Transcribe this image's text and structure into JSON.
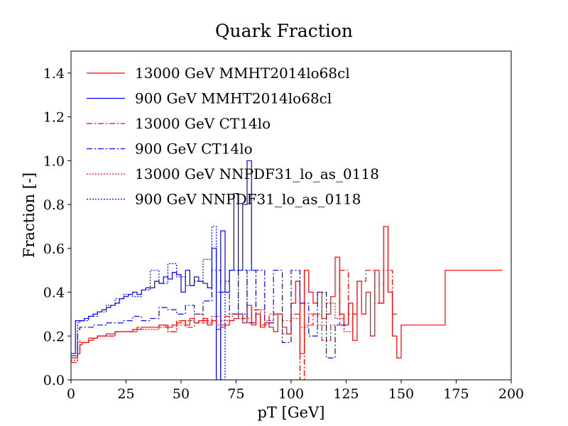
{
  "chart_data": {
    "type": "line",
    "title": "Quark Fraction",
    "xlabel": "pT [GeV]",
    "ylabel": "Fraction [-]",
    "xlim": [
      0,
      200
    ],
    "ylim": [
      0,
      1.5
    ],
    "xticks": [
      0,
      25,
      50,
      75,
      100,
      125,
      150,
      175,
      200
    ],
    "yticks": [
      0.0,
      0.2,
      0.4,
      0.6,
      0.8,
      1.0,
      1.2,
      1.4
    ],
    "xtick_labels": [
      "0",
      "25",
      "50",
      "75",
      "100",
      "125",
      "150",
      "175",
      "200"
    ],
    "ytick_labels": [
      "0.0",
      "0.2",
      "0.4",
      "0.6",
      "0.8",
      "1.0",
      "1.2",
      "1.4"
    ],
    "grid": false,
    "legend_position": "upper-left",
    "step": true,
    "series": [
      {
        "name": "13000 GeV MMHT2014lo68cl",
        "color": "#ff0000",
        "dash": "solid",
        "x": [
          0,
          1,
          2,
          3,
          4,
          5,
          8,
          10,
          12,
          14,
          16,
          18,
          20,
          24,
          28,
          32,
          36,
          40,
          43,
          46,
          48,
          50,
          52,
          54,
          56,
          58,
          60,
          62,
          64,
          66,
          68,
          70,
          72,
          74,
          76,
          78,
          80,
          82,
          84,
          86,
          88,
          90,
          92,
          94,
          96,
          98,
          100,
          102,
          104,
          106,
          108,
          110,
          112,
          114,
          116,
          118,
          120,
          122,
          124,
          126,
          128,
          130,
          132,
          134,
          136,
          138,
          140,
          142,
          144,
          146,
          148,
          150,
          170,
          172,
          186,
          188,
          190,
          192,
          194
        ],
        "y": [
          0.1,
          0.1,
          0.1,
          0.12,
          0.16,
          0.17,
          0.18,
          0.19,
          0.2,
          0.2,
          0.21,
          0.21,
          0.22,
          0.22,
          0.23,
          0.24,
          0.24,
          0.25,
          0.24,
          0.25,
          0.26,
          0.27,
          0.25,
          0.28,
          0.26,
          0.27,
          0.28,
          0.25,
          0.27,
          0.23,
          0.24,
          0.25,
          0.27,
          0.28,
          0.3,
          0.26,
          0.34,
          0.25,
          0.3,
          0.24,
          0.26,
          0.24,
          0.22,
          0.3,
          0.24,
          0.21,
          0.35,
          0.45,
          0.12,
          0.5,
          0.4,
          0.35,
          0.4,
          0.28,
          0.3,
          0.38,
          0.56,
          0.3,
          0.25,
          0.35,
          0.18,
          0.45,
          0.3,
          0.4,
          0.2,
          0.5,
          0.35,
          0.7,
          0.4,
          0.2,
          0.1,
          0.25,
          0.5,
          0.5,
          0.5,
          0.5,
          0.5,
          0.5,
          0.5
        ]
      },
      {
        "name": "900 GeV MMHT2014lo68cl",
        "color": "#0000ff",
        "dash": "solid",
        "x": [
          0,
          1,
          2,
          3,
          4,
          5,
          6,
          8,
          10,
          12,
          14,
          16,
          18,
          20,
          22,
          24,
          26,
          28,
          30,
          32,
          34,
          36,
          38,
          40,
          42,
          44,
          46,
          48,
          50,
          52,
          54,
          56,
          58,
          60,
          62,
          64,
          66,
          68,
          70,
          72,
          74,
          76,
          78,
          80,
          82
        ],
        "y": [
          0.12,
          0.12,
          0.27,
          0.27,
          0.27,
          0.27,
          0.28,
          0.29,
          0.3,
          0.31,
          0.32,
          0.33,
          0.34,
          0.35,
          0.37,
          0.38,
          0.39,
          0.4,
          0.39,
          0.41,
          0.42,
          0.42,
          0.45,
          0.44,
          0.47,
          0.46,
          0.49,
          0.48,
          0.4,
          0.5,
          0.43,
          0.47,
          0.45,
          0.44,
          0.42,
          0.6,
          0.0,
          0.68,
          0.4,
          0.5,
          0.85,
          0.5,
          0.8,
          1.0,
          0.5
        ]
      },
      {
        "name": "13000 GeV CT14lo",
        "color": "#ff0000",
        "dash": "dashdot",
        "x": [
          0,
          1,
          3,
          4,
          8,
          12,
          20,
          30,
          40,
          44,
          48,
          52,
          56,
          60,
          66,
          70,
          74,
          78,
          82,
          86,
          90,
          96,
          100,
          104,
          106,
          110,
          114,
          118,
          122,
          126,
          130,
          134,
          138,
          142,
          146
        ],
        "y": [
          0.08,
          0.08,
          0.18,
          0.17,
          0.19,
          0.2,
          0.22,
          0.24,
          0.25,
          0.22,
          0.27,
          0.24,
          0.26,
          0.27,
          0.25,
          0.29,
          0.3,
          0.28,
          0.32,
          0.25,
          0.3,
          0.27,
          0.3,
          0.0,
          0.25,
          0.3,
          0.18,
          0.25,
          0.5,
          0.3,
          0.45,
          0.5,
          0.35,
          0.5,
          0.3
        ]
      },
      {
        "name": "900 GeV CT14lo",
        "color": "#0000ff",
        "dash": "dashdot",
        "x": [
          0,
          1,
          3,
          4,
          10,
          16,
          24,
          28,
          32,
          36,
          40,
          44,
          48,
          52,
          56,
          60,
          64,
          68,
          72,
          76,
          80,
          84,
          88,
          92,
          96,
          100,
          104,
          108,
          112,
          116,
          120,
          124
        ],
        "y": [
          0.11,
          0.11,
          0.23,
          0.24,
          0.25,
          0.26,
          0.27,
          0.29,
          0.27,
          0.28,
          0.33,
          0.32,
          0.3,
          0.34,
          0.3,
          0.36,
          0.5,
          0.4,
          0.3,
          0.5,
          0.26,
          0.5,
          0.26,
          0.5,
          0.17,
          0.5,
          0.35,
          0.2,
          0.4,
          0.1,
          0.25,
          0.25
        ]
      },
      {
        "name": "13000 GeV NNPDF31_lo_as_0118",
        "color": "#ff0000",
        "dash": "dotted",
        "x": [
          0,
          1,
          3,
          4,
          8,
          12,
          20,
          30,
          40,
          44,
          48,
          52,
          56,
          60,
          64,
          68,
          72,
          76,
          80,
          84,
          88,
          92,
          96,
          100,
          104,
          108,
          112,
          116,
          120,
          124,
          128
        ],
        "y": [
          0.09,
          0.09,
          0.17,
          0.17,
          0.19,
          0.2,
          0.22,
          0.23,
          0.24,
          0.22,
          0.25,
          0.27,
          0.3,
          0.26,
          0.29,
          0.27,
          0.3,
          0.28,
          0.26,
          0.32,
          0.27,
          0.3,
          0.21,
          0.28,
          0.24,
          0.3,
          0.25,
          0.35,
          0.28,
          0.22,
          0.3
        ]
      },
      {
        "name": "900 GeV NNPDF31_lo_as_0118",
        "color": "#0000ff",
        "dash": "dotted",
        "x": [
          0,
          1,
          3,
          4,
          8,
          12,
          16,
          20,
          24,
          28,
          32,
          36,
          40,
          44,
          48,
          52,
          56,
          60,
          64,
          66,
          68,
          70,
          72,
          76,
          80
        ],
        "y": [
          0.12,
          0.12,
          0.26,
          0.27,
          0.29,
          0.31,
          0.34,
          0.37,
          0.39,
          0.38,
          0.41,
          0.5,
          0.44,
          0.53,
          0.47,
          0.43,
          0.45,
          0.55,
          0.7,
          0.4,
          0.0,
          0.45,
          0.5,
          0.3,
          0.5
        ]
      }
    ]
  }
}
